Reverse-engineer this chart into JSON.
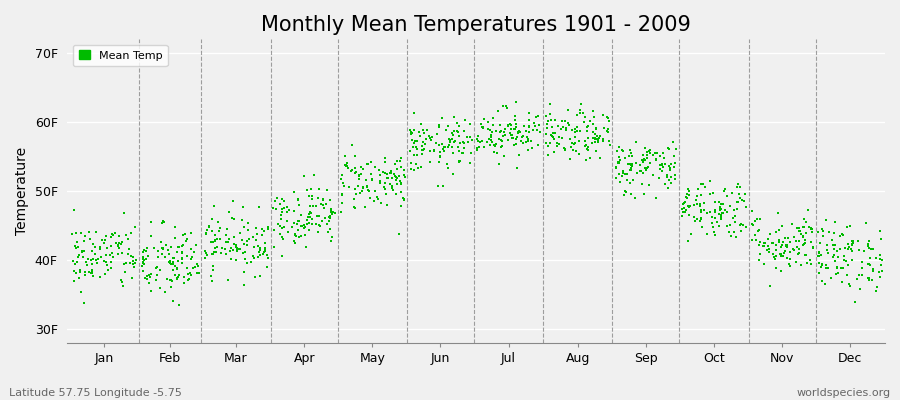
{
  "title": "Monthly Mean Temperatures 1901 - 2009",
  "ylabel": "Temperature",
  "xlabel_labels": [
    "Jan",
    "Feb",
    "Mar",
    "Apr",
    "May",
    "Jun",
    "Jul",
    "Aug",
    "Sep",
    "Oct",
    "Nov",
    "Dec"
  ],
  "ytick_labels": [
    "30F",
    "40F",
    "50F",
    "60F",
    "70F"
  ],
  "ytick_values": [
    30,
    40,
    50,
    60,
    70
  ],
  "ylim": [
    28,
    72
  ],
  "xlim": [
    0,
    366
  ],
  "background_color": "#f0f0f0",
  "plot_bg_color": "#f0f0f0",
  "dot_color": "#00bb00",
  "legend_label": "Mean Temp",
  "subtitle": "Latitude 57.75 Longitude -5.75",
  "watermark": "worldspecies.org",
  "title_fontsize": 15,
  "n_years": 109,
  "monthly_mean_temps_F": [
    40.5,
    39.5,
    42.5,
    46.5,
    51.5,
    56.5,
    58.5,
    58.0,
    53.5,
    47.5,
    42.5,
    40.5
  ],
  "monthly_std_F": [
    2.5,
    2.8,
    2.2,
    2.2,
    2.2,
    2.0,
    1.8,
    1.8,
    2.0,
    2.2,
    2.2,
    2.5
  ],
  "seed": 42
}
